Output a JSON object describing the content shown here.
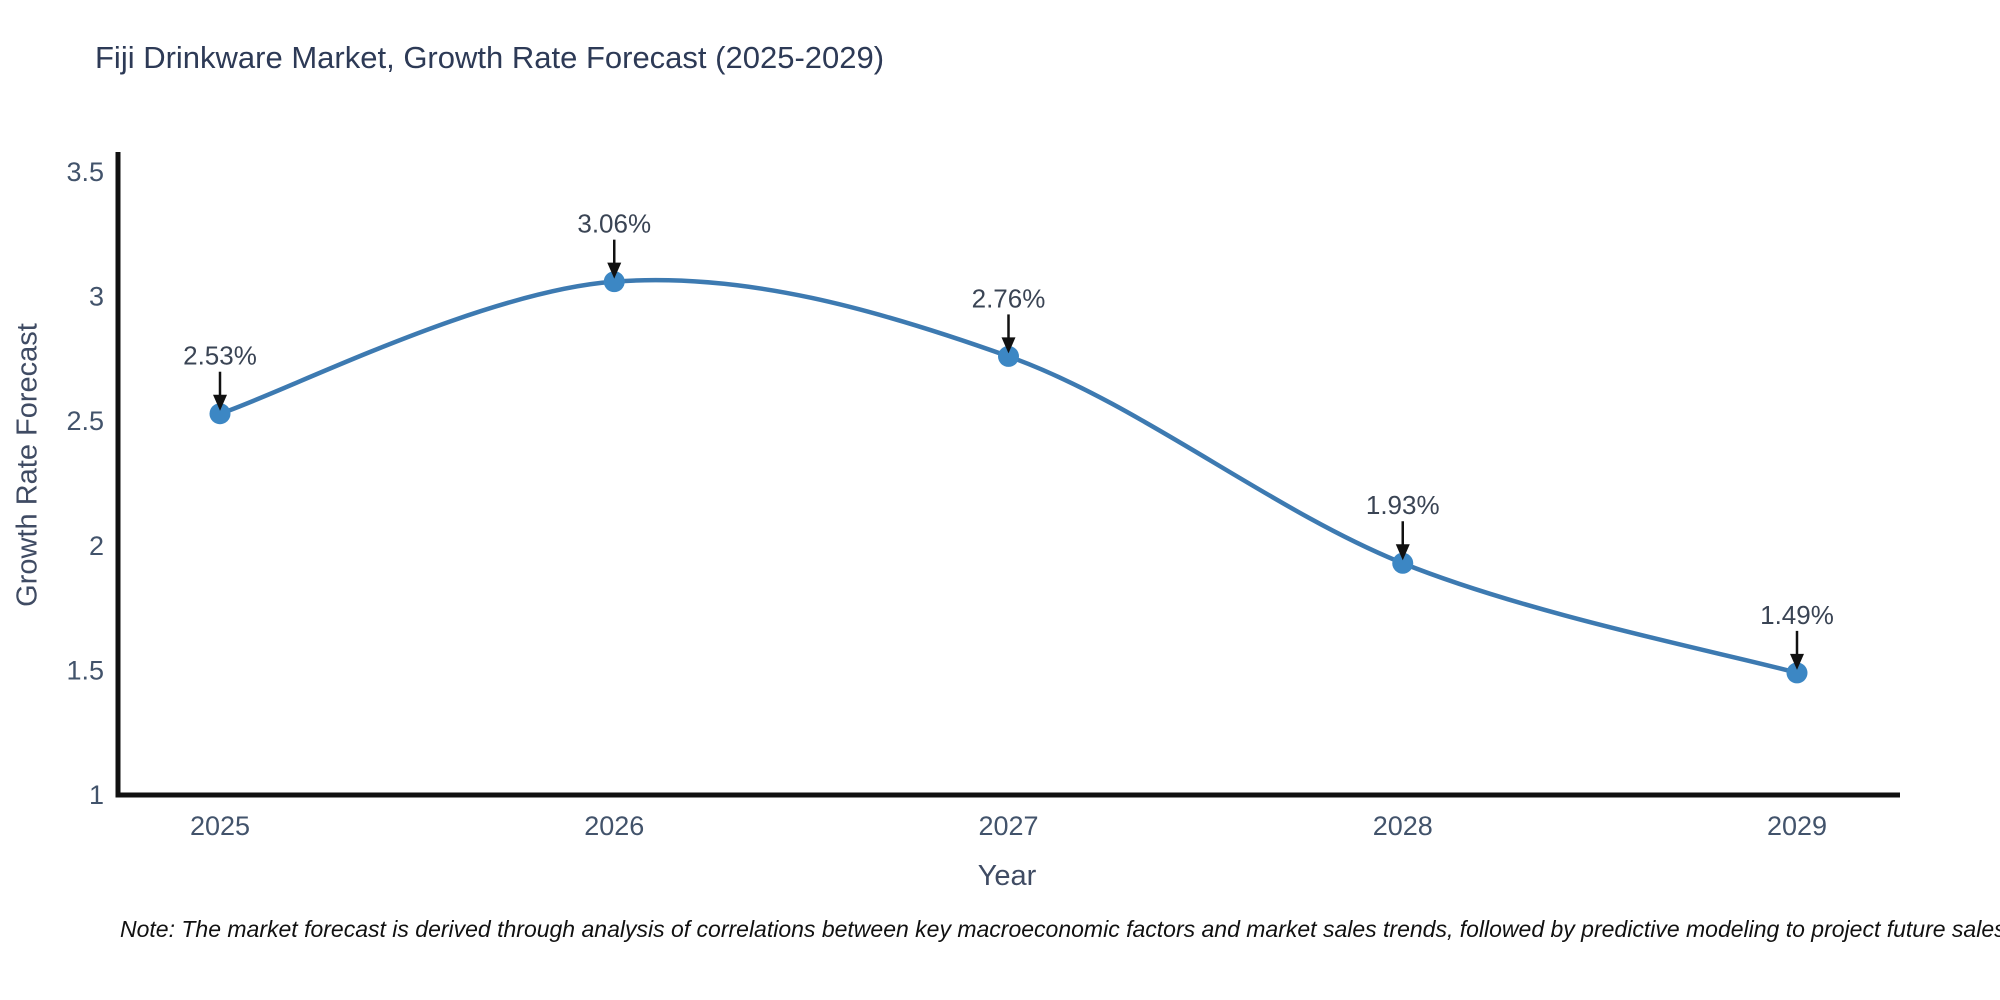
{
  "title": "Fiji Drinkware Market, Growth Rate Forecast (2025-2029)",
  "note": "Note: The market forecast is derived through analysis of correlations between key macroeconomic factors and market sales trends, followed by predictive modeling to project future sales",
  "chart_data": {
    "type": "line",
    "line_shape": "spline",
    "title": "Fiji Drinkware Market, Growth Rate Forecast (2025-2029)",
    "xlabel": "Year",
    "ylabel": "Growth Rate Forecast",
    "x": [
      2025,
      2026,
      2027,
      2028,
      2029
    ],
    "y": [
      2.53,
      3.06,
      2.76,
      1.93,
      1.49
    ],
    "point_labels": [
      "2.53%",
      "3.06%",
      "2.76%",
      "1.93%",
      "1.49%"
    ],
    "x_ticks": [
      "2025",
      "2026",
      "2027",
      "2028",
      "2029"
    ],
    "y_ticks": [
      "1",
      "1.5",
      "2",
      "2.5",
      "3",
      "3.5"
    ],
    "y_tick_values": [
      1,
      1.5,
      2,
      2.5,
      3,
      3.5
    ],
    "ylim": [
      1,
      3.5
    ],
    "grid": false,
    "legend": "none",
    "colors": {
      "line": "#3d7ab1",
      "marker": "#3c87c4",
      "axis": "#111111",
      "annotation_text": "#3a4454",
      "annotation_arrow": "#111111",
      "tick_label": "#42536b"
    }
  }
}
